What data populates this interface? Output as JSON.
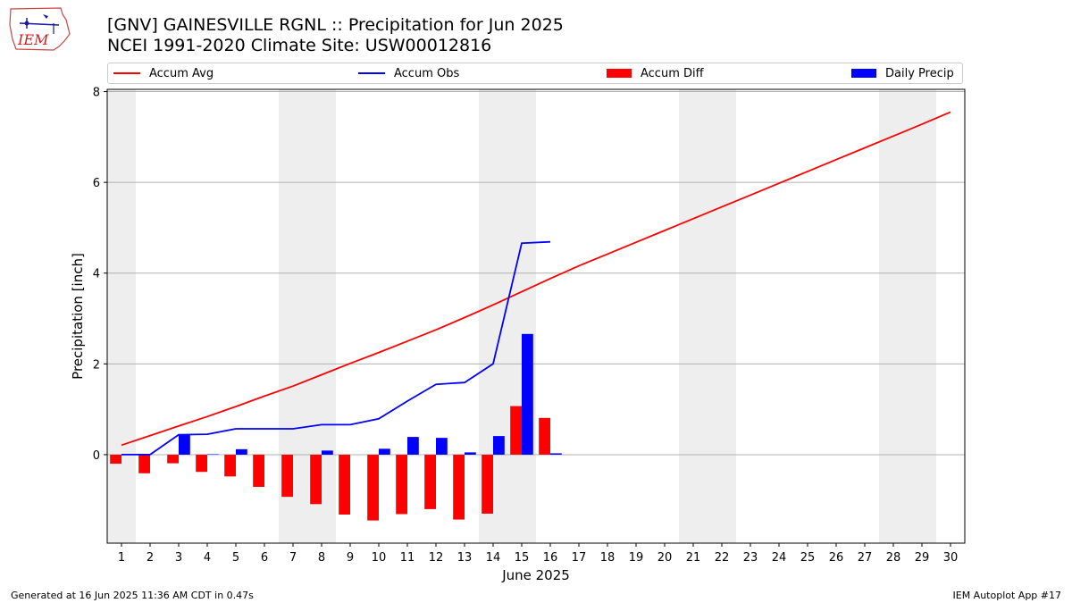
{
  "logo": {
    "text": "IEM"
  },
  "header": {
    "title_line1": "[GNV] GAINESVILLE RGNL :: Precipitation for Jun 2025",
    "title_line2": "NCEI 1991-2020 Climate Site: USW00012816"
  },
  "footer": {
    "left": "Generated at 16 Jun 2025 11:36 AM CDT in 0.47s",
    "right": "IEM Autoplot App #17"
  },
  "colors": {
    "avg": "#ff0000",
    "obs": "#0000ff",
    "diff": "#ff0000",
    "daily": "#0000ff",
    "weekend": "#eeeeee",
    "grid": "#b0b0b0"
  },
  "chart_data": {
    "type": "bar",
    "xlabel": "June 2025",
    "ylabel": "Precipitation [inch]",
    "xlim": [
      0.5,
      30.5
    ],
    "ylim": [
      -1.95,
      8.05
    ],
    "yticks": [
      0,
      2,
      4,
      6,
      8
    ],
    "days": [
      1,
      2,
      3,
      4,
      5,
      6,
      7,
      8,
      9,
      10,
      11,
      12,
      13,
      14,
      15,
      16,
      17,
      18,
      19,
      20,
      21,
      22,
      23,
      24,
      25,
      26,
      27,
      28,
      29,
      30
    ],
    "weekend_shading": [
      [
        0.5,
        1.5
      ],
      [
        6.5,
        8.5
      ],
      [
        13.5,
        15.5
      ],
      [
        20.5,
        22.5
      ],
      [
        27.5,
        29.5
      ]
    ],
    "grid": true,
    "legend_position": "top",
    "series": [
      {
        "name": "Accum Avg",
        "kind": "line",
        "x": [
          1,
          2,
          3,
          4,
          5,
          6,
          7,
          8,
          9,
          10,
          11,
          12,
          13,
          14,
          15,
          16,
          17,
          18,
          19,
          20,
          21,
          22,
          23,
          24,
          25,
          26,
          27,
          28,
          29,
          30
        ],
        "values": [
          0.21,
          0.42,
          0.63,
          0.84,
          1.06,
          1.29,
          1.51,
          1.76,
          2.01,
          2.25,
          2.5,
          2.75,
          3.02,
          3.3,
          3.59,
          3.88,
          4.16,
          4.42,
          4.68,
          4.94,
          5.2,
          5.46,
          5.72,
          5.98,
          6.24,
          6.5,
          6.76,
          7.02,
          7.28,
          7.55
        ]
      },
      {
        "name": "Accum Obs",
        "kind": "line",
        "x": [
          1,
          2,
          3,
          4,
          5,
          6,
          7,
          8,
          9,
          10,
          11,
          12,
          13,
          14,
          15,
          16
        ],
        "values": [
          0.0,
          0.0,
          0.44,
          0.45,
          0.57,
          0.57,
          0.57,
          0.66,
          0.66,
          0.79,
          1.18,
          1.55,
          1.59,
          2.0,
          4.66,
          4.69
        ]
      },
      {
        "name": "Accum Diff",
        "kind": "bar",
        "x": [
          1,
          2,
          3,
          4,
          5,
          6,
          7,
          8,
          9,
          10,
          11,
          12,
          13,
          14,
          15,
          16
        ],
        "values": [
          -0.2,
          -0.41,
          -0.19,
          -0.38,
          -0.48,
          -0.71,
          -0.93,
          -1.09,
          -1.32,
          -1.45,
          -1.31,
          -1.2,
          -1.43,
          -1.3,
          1.07,
          0.81
        ]
      },
      {
        "name": "Daily Precip",
        "kind": "bar",
        "x": [
          1,
          2,
          3,
          4,
          5,
          6,
          7,
          8,
          9,
          10,
          11,
          12,
          13,
          14,
          15,
          16
        ],
        "values": [
          0.0,
          0.0,
          0.44,
          0.01,
          0.12,
          0.0,
          0.0,
          0.09,
          0.0,
          0.13,
          0.39,
          0.37,
          0.05,
          0.41,
          2.66,
          0.03
        ]
      }
    ]
  }
}
